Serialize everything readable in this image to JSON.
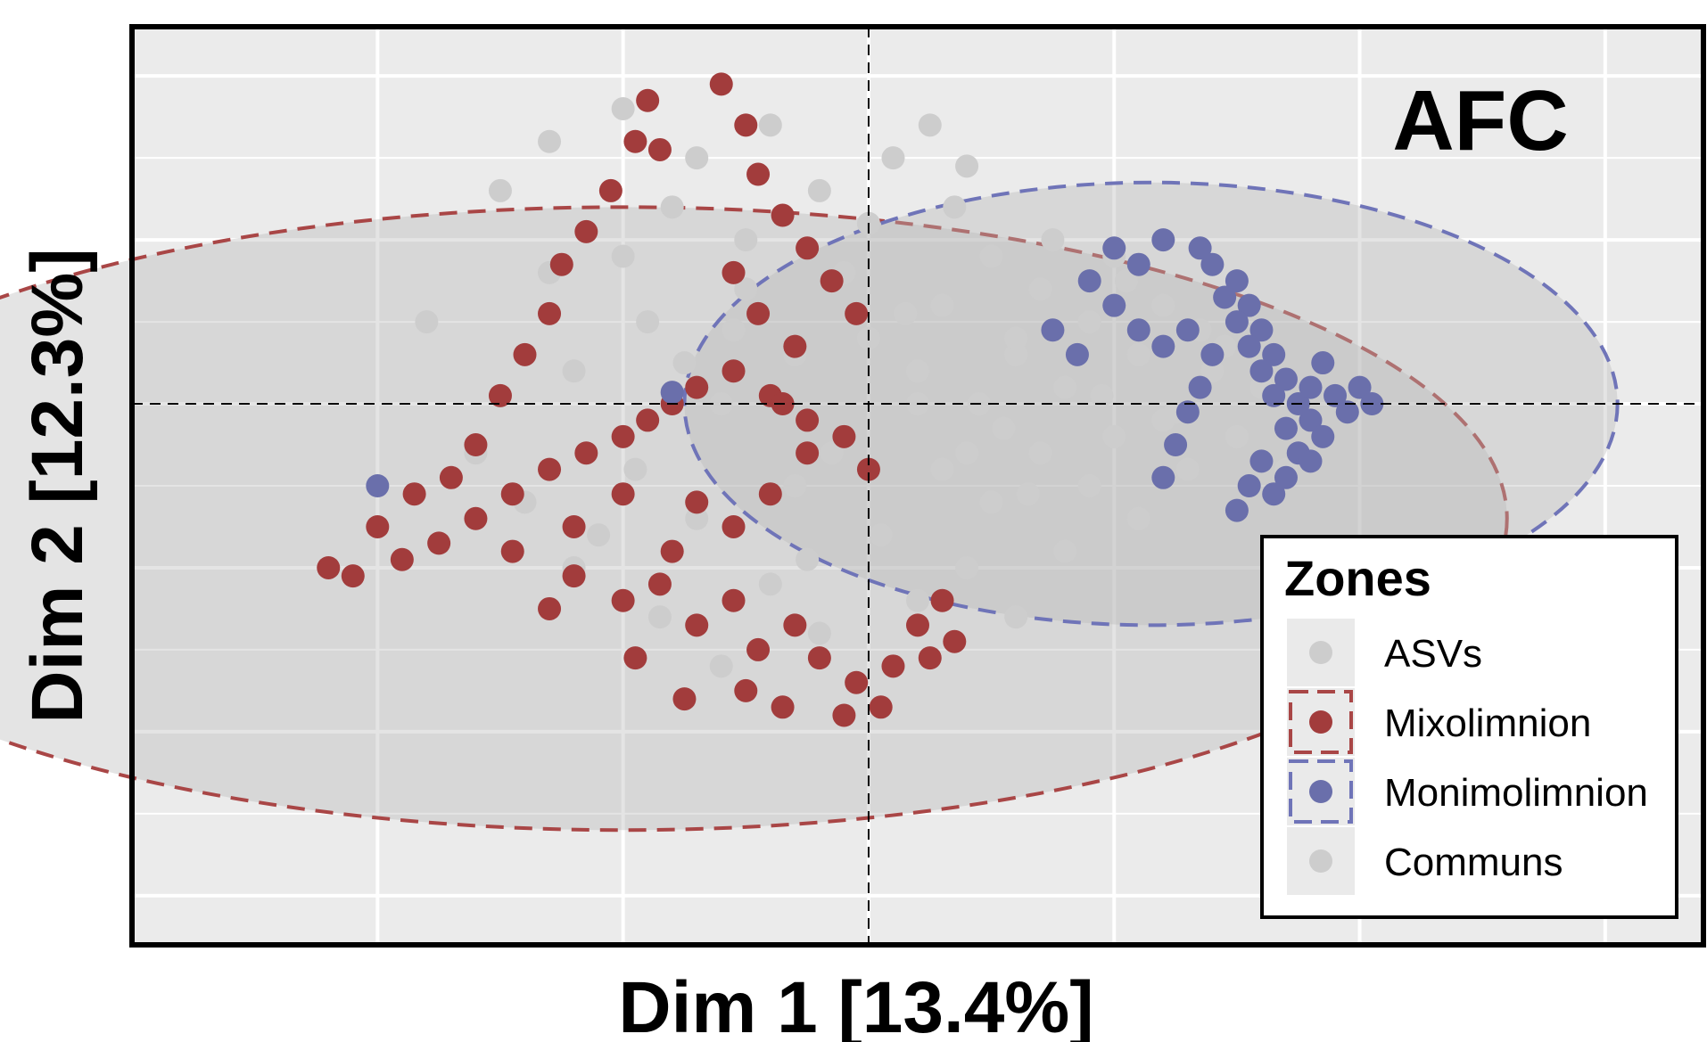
{
  "chart_data": {
    "type": "scatter",
    "title": "AFC",
    "xlabel": "Dim 1 [13.4%]",
    "ylabel": "Dim 2 [12.3%]",
    "xlim": [
      -3.0,
      3.4
    ],
    "ylim": [
      -3.3,
      2.3
    ],
    "grid": true,
    "legend": {
      "title": "Zones",
      "position": "bottom-right",
      "entries": [
        {
          "label": "ASVs",
          "color": "#cdcdcd",
          "ellipse": false
        },
        {
          "label": "Mixolimnion",
          "color": "#a23c3c",
          "ellipse": true,
          "ellipse_color": "#a94646"
        },
        {
          "label": "Monimolimnion",
          "color": "#6a6fab",
          "ellipse": true,
          "ellipse_color": "#6f74b8"
        },
        {
          "label": "Communs",
          "color": "#cdcdcd",
          "ellipse": false
        }
      ]
    },
    "reference_lines": {
      "x": 0,
      "y": 0
    },
    "series": [
      {
        "label": "ASVs",
        "color": "#cdcdcd",
        "points": [
          [
            -1.8,
            0.5
          ],
          [
            -1.6,
            -0.3
          ],
          [
            -1.5,
            1.3
          ],
          [
            -1.4,
            -0.6
          ],
          [
            -1.3,
            1.6
          ],
          [
            -1.2,
            0.2
          ],
          [
            -1.2,
            -1.0
          ],
          [
            -1.0,
            1.8
          ],
          [
            -1.0,
            0.9
          ],
          [
            -0.95,
            -0.4
          ],
          [
            -0.9,
            0.5
          ],
          [
            -0.85,
            -1.3
          ],
          [
            -0.8,
            1.2
          ],
          [
            -0.7,
            -0.7
          ],
          [
            -0.7,
            1.5
          ],
          [
            -0.6,
            0.0
          ],
          [
            -0.6,
            -1.6
          ],
          [
            -0.5,
            1.0
          ],
          [
            -0.5,
            0.7
          ],
          [
            -0.4,
            -1.1
          ],
          [
            -0.4,
            1.7
          ],
          [
            -0.3,
            0.3
          ],
          [
            -0.3,
            -0.5
          ],
          [
            -0.2,
            1.3
          ],
          [
            -0.2,
            -1.4
          ],
          [
            -0.1,
            0.8
          ],
          [
            -0.1,
            -0.2
          ],
          [
            0.0,
            1.1
          ],
          [
            0.0,
            0.4
          ],
          [
            0.05,
            -0.8
          ],
          [
            0.1,
            1.5
          ],
          [
            0.1,
            -1.6
          ],
          [
            0.2,
            0.2
          ],
          [
            0.2,
            -1.2
          ],
          [
            0.3,
            0.6
          ],
          [
            0.3,
            -0.4
          ],
          [
            0.35,
            1.2
          ],
          [
            0.4,
            -1.0
          ],
          [
            0.45,
            0.0
          ],
          [
            0.5,
            0.9
          ],
          [
            0.5,
            -0.6
          ],
          [
            0.6,
            0.3
          ],
          [
            0.6,
            -1.3
          ],
          [
            0.7,
            0.7
          ],
          [
            0.7,
            -0.3
          ],
          [
            0.8,
            0.1
          ],
          [
            0.8,
            -0.9
          ],
          [
            0.9,
            0.5
          ],
          [
            0.9,
            -0.5
          ],
          [
            1.0,
            0.9
          ],
          [
            1.0,
            -0.2
          ],
          [
            1.1,
            0.3
          ],
          [
            1.1,
            -0.7
          ],
          [
            1.2,
            0.6
          ],
          [
            1.2,
            -0.1
          ],
          [
            1.3,
            -0.4
          ],
          [
            1.4,
            0.2
          ],
          [
            1.5,
            -0.2
          ],
          [
            1.6,
            0.1
          ],
          [
            1.7,
            -0.4
          ],
          [
            -1.3,
            0.8
          ],
          [
            -0.9,
            -0.1
          ],
          [
            -0.55,
            0.45
          ],
          [
            -0.25,
            -0.95
          ],
          [
            0.15,
            0.55
          ],
          [
            0.25,
            1.7
          ],
          [
            -0.75,
            0.25
          ],
          [
            0.55,
            -0.15
          ],
          [
            0.75,
            1.0
          ],
          [
            -1.1,
            -0.8
          ],
          [
            1.35,
            0.45
          ],
          [
            0.95,
            0.05
          ],
          [
            -0.15,
            -0.3
          ],
          [
            0.4,
            1.45
          ]
        ]
      },
      {
        "label": "Communs",
        "color": "#cdcdcd",
        "points": [
          [
            0.2,
            0.0
          ],
          [
            0.4,
            -0.3
          ],
          [
            0.6,
            0.4
          ],
          [
            0.85,
            0.3
          ],
          [
            1.05,
            0.75
          ],
          [
            1.25,
            -0.05
          ],
          [
            1.45,
            0.35
          ],
          [
            0.65,
            -0.55
          ]
        ]
      },
      {
        "label": "Mixolimnion",
        "color": "#a23c3c",
        "points": [
          [
            -2.0,
            -0.75
          ],
          [
            -2.1,
            -1.05
          ],
          [
            -2.2,
            -1.0
          ],
          [
            -1.9,
            -0.95
          ],
          [
            -1.75,
            -0.85
          ],
          [
            -1.6,
            -0.7
          ],
          [
            -1.45,
            -0.55
          ],
          [
            -1.3,
            -0.4
          ],
          [
            -1.15,
            -0.3
          ],
          [
            -1.0,
            -0.2
          ],
          [
            -0.9,
            -0.1
          ],
          [
            -0.8,
            0.0
          ],
          [
            -0.7,
            0.1
          ],
          [
            -0.55,
            0.2
          ],
          [
            -0.4,
            0.05
          ],
          [
            -0.25,
            -0.1
          ],
          [
            -0.1,
            -0.2
          ],
          [
            0.0,
            -0.4
          ],
          [
            -1.85,
            -0.55
          ],
          [
            -1.7,
            -0.45
          ],
          [
            -1.6,
            -0.25
          ],
          [
            -1.5,
            0.05
          ],
          [
            -1.4,
            0.3
          ],
          [
            -1.3,
            0.55
          ],
          [
            -1.25,
            0.85
          ],
          [
            -1.15,
            1.05
          ],
          [
            -1.05,
            1.3
          ],
          [
            -0.95,
            1.6
          ],
          [
            -0.9,
            1.85
          ],
          [
            -0.85,
            1.55
          ],
          [
            -1.3,
            -1.25
          ],
          [
            -1.2,
            -1.05
          ],
          [
            -1.0,
            -1.2
          ],
          [
            -0.85,
            -1.1
          ],
          [
            -0.7,
            -1.35
          ],
          [
            -0.55,
            -1.2
          ],
          [
            -0.45,
            -1.5
          ],
          [
            -0.3,
            -1.35
          ],
          [
            -0.2,
            -1.55
          ],
          [
            -0.05,
            -1.7
          ],
          [
            0.1,
            -1.6
          ],
          [
            0.25,
            -1.55
          ],
          [
            0.35,
            -1.45
          ],
          [
            -0.95,
            -1.55
          ],
          [
            -0.75,
            -1.8
          ],
          [
            -0.5,
            -1.75
          ],
          [
            -0.35,
            -1.85
          ],
          [
            -0.1,
            -1.9
          ],
          [
            0.05,
            -1.85
          ],
          [
            -0.6,
            1.95
          ],
          [
            -0.5,
            1.7
          ],
          [
            -0.45,
            1.4
          ],
          [
            -0.35,
            1.15
          ],
          [
            -0.25,
            0.95
          ],
          [
            -0.15,
            0.75
          ],
          [
            -0.05,
            0.55
          ],
          [
            -0.55,
            0.8
          ],
          [
            -0.45,
            0.55
          ],
          [
            -0.3,
            0.35
          ],
          [
            -0.35,
            0.0
          ],
          [
            -0.25,
            -0.3
          ],
          [
            -0.4,
            -0.55
          ],
          [
            -0.55,
            -0.75
          ],
          [
            -0.7,
            -0.6
          ],
          [
            -0.8,
            -0.9
          ],
          [
            -1.0,
            -0.55
          ],
          [
            -1.2,
            -0.75
          ],
          [
            -1.45,
            -0.9
          ],
          [
            0.3,
            -1.2
          ],
          [
            0.2,
            -1.35
          ]
        ]
      },
      {
        "label": "Monimolimnion",
        "color": "#6a6fab",
        "points": [
          [
            1.35,
            0.95
          ],
          [
            1.4,
            0.85
          ],
          [
            1.5,
            0.75
          ],
          [
            1.55,
            0.6
          ],
          [
            1.6,
            0.45
          ],
          [
            1.65,
            0.3
          ],
          [
            1.7,
            0.15
          ],
          [
            1.75,
            0.0
          ],
          [
            1.8,
            -0.1
          ],
          [
            1.8,
            0.1
          ],
          [
            1.85,
            0.25
          ],
          [
            1.9,
            0.05
          ],
          [
            1.95,
            -0.05
          ],
          [
            2.0,
            0.1
          ],
          [
            2.05,
            0.0
          ],
          [
            1.45,
            0.65
          ],
          [
            1.5,
            0.5
          ],
          [
            1.55,
            0.35
          ],
          [
            1.6,
            0.2
          ],
          [
            1.65,
            0.05
          ],
          [
            1.7,
            -0.15
          ],
          [
            1.75,
            -0.3
          ],
          [
            1.6,
            -0.35
          ],
          [
            1.55,
            -0.5
          ],
          [
            1.5,
            -0.65
          ],
          [
            1.65,
            -0.55
          ],
          [
            1.7,
            -0.45
          ],
          [
            1.8,
            -0.35
          ],
          [
            1.85,
            -0.2
          ],
          [
            1.4,
            0.3
          ],
          [
            1.35,
            0.1
          ],
          [
            1.3,
            -0.05
          ],
          [
            1.25,
            -0.25
          ],
          [
            1.2,
            -0.45
          ],
          [
            0.9,
            0.75
          ],
          [
            1.0,
            0.6
          ],
          [
            1.1,
            0.45
          ],
          [
            1.2,
            0.35
          ],
          [
            1.3,
            0.45
          ],
          [
            0.75,
            0.45
          ],
          [
            0.85,
            0.3
          ],
          [
            1.0,
            0.95
          ],
          [
            1.1,
            0.85
          ],
          [
            1.2,
            1.0
          ],
          [
            -2.0,
            -0.5
          ],
          [
            -0.8,
            0.07
          ]
        ]
      }
    ],
    "ellipses": [
      {
        "label": "Mixolimnion",
        "color": "#a94646",
        "center": [
          -1.0,
          -0.7
        ],
        "rx": 3.6,
        "ry": 1.9
      },
      {
        "label": "Monimolimnion",
        "color": "#6f74b8",
        "center": [
          1.15,
          0.0
        ],
        "rx": 1.9,
        "ry": 1.35
      }
    ]
  }
}
